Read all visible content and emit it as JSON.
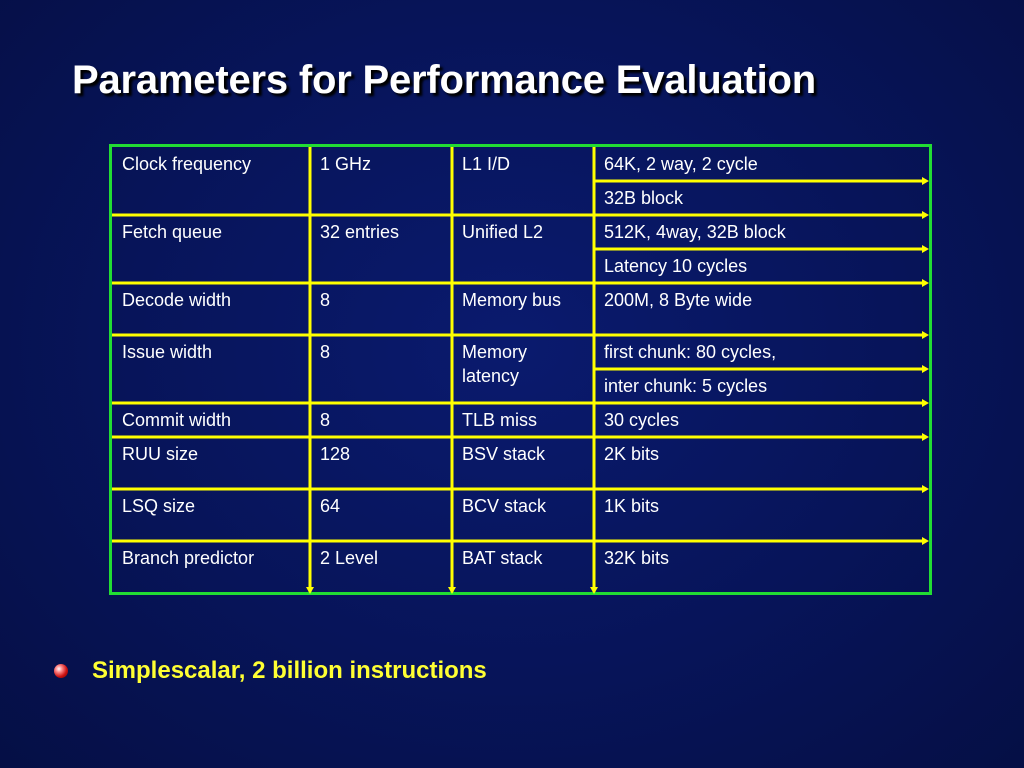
{
  "slide": {
    "title": "Parameters for Performance Evaluation",
    "bullet": "Simplescalar, 2 billion instructions"
  },
  "table": {
    "rows": [
      {
        "c1": "Clock frequency",
        "c2": "1 GHz",
        "c3": "L1 I/D",
        "c4": [
          "64K, 2 way, 2 cycle",
          "32B block"
        ]
      },
      {
        "c1": "Fetch queue",
        "c2": "32 entries",
        "c3": "Unified L2",
        "c4": [
          "512K, 4way, 32B block",
          "Latency 10 cycles"
        ]
      },
      {
        "c1": "Decode width",
        "c2": "8",
        "c3": "Memory bus",
        "c4": [
          "200M, 8 Byte wide"
        ]
      },
      {
        "c1": "Issue width",
        "c2": "8",
        "c3": "Memory latency",
        "c4": [
          "first chunk: 80 cycles,",
          "inter chunk: 5 cycles"
        ]
      },
      {
        "c1": "Commit width",
        "c2": "8",
        "c3": "TLB miss",
        "c4": [
          "30 cycles"
        ]
      },
      {
        "c1": "RUU size",
        "c2": "128",
        "c3": "BSV stack",
        "c4": [
          "2K bits"
        ]
      },
      {
        "c1": "LSQ size",
        "c2": "64",
        "c3": "BCV stack",
        "c4": [
          "1K bits"
        ]
      },
      {
        "c1": "Branch predictor",
        "c2": "2 Level",
        "c3": "BAT stack",
        "c4": [
          "32K bits"
        ]
      }
    ]
  },
  "colors": {
    "border": "#22dd33",
    "lines": "#ffff00",
    "title": "#ffffff",
    "bullet_text": "#ffff33"
  }
}
